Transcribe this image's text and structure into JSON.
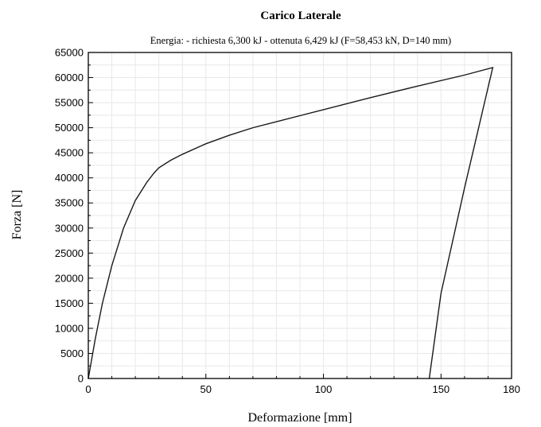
{
  "chart_data": {
    "type": "line",
    "title": "Carico Laterale",
    "subtitle": "Energia: - richiesta 6,300 kJ - ottenuta 6,429 kJ (F=58,453 kN, D=140 mm)",
    "xlabel": "Deformazione [mm]",
    "ylabel": "Forza [N]",
    "xlim": [
      0,
      180
    ],
    "ylim": [
      0,
      65000
    ],
    "x_ticks": [
      0,
      50,
      100,
      150,
      180
    ],
    "y_ticks": [
      0,
      5000,
      10000,
      15000,
      20000,
      25000,
      30000,
      35000,
      40000,
      45000,
      50000,
      55000,
      60000,
      65000
    ],
    "grid": true,
    "series": [
      {
        "x": [
          0,
          3,
          6,
          10,
          15,
          20,
          25,
          28,
          30,
          35,
          40,
          50,
          60,
          70,
          80,
          100,
          120,
          140,
          160,
          172,
          169,
          160,
          150,
          145
        ],
        "y": [
          0,
          8000,
          15000,
          22500,
          30000,
          35500,
          39200,
          41000,
          42000,
          43500,
          44700,
          46800,
          48500,
          50000,
          51200,
          53600,
          56000,
          58300,
          60500,
          62000,
          56000,
          38000,
          17000,
          0
        ]
      }
    ]
  }
}
